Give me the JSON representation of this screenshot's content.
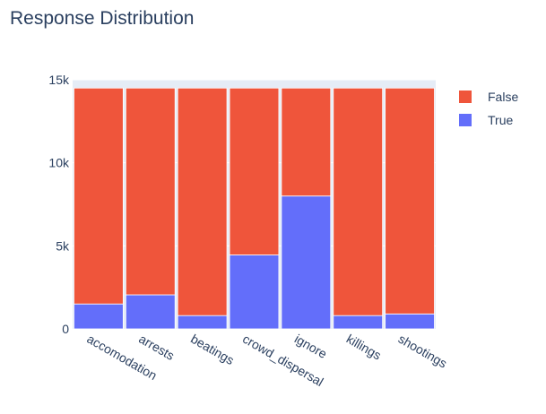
{
  "chart_data": {
    "type": "bar",
    "stacked": true,
    "title": "Response Distribution",
    "categories": [
      "accomodation",
      "arrests",
      "beatings",
      "crowd_dispersal",
      "ignore",
      "killings",
      "shootings"
    ],
    "series": [
      {
        "name": "True",
        "color": "#636efa",
        "values": [
          1500,
          2050,
          800,
          4450,
          8000,
          800,
          900
        ]
      },
      {
        "name": "False",
        "color": "#ef553b",
        "values": [
          13000,
          12450,
          13700,
          10050,
          6500,
          13700,
          13600
        ]
      }
    ],
    "ylim": [
      0,
      15000
    ],
    "yticks": [
      {
        "value": 0,
        "label": "0"
      },
      {
        "value": 5000,
        "label": "5k"
      },
      {
        "value": 10000,
        "label": "10k"
      },
      {
        "value": 15000,
        "label": "15k"
      }
    ],
    "xlabel": "",
    "ylabel": "",
    "grid": true,
    "legend_position": "top-right",
    "legend_order": [
      "False",
      "True"
    ],
    "colors": {
      "plot_background": "#e5ecf6",
      "text": "#2a3f5f",
      "gridline": "#ffffff"
    }
  }
}
